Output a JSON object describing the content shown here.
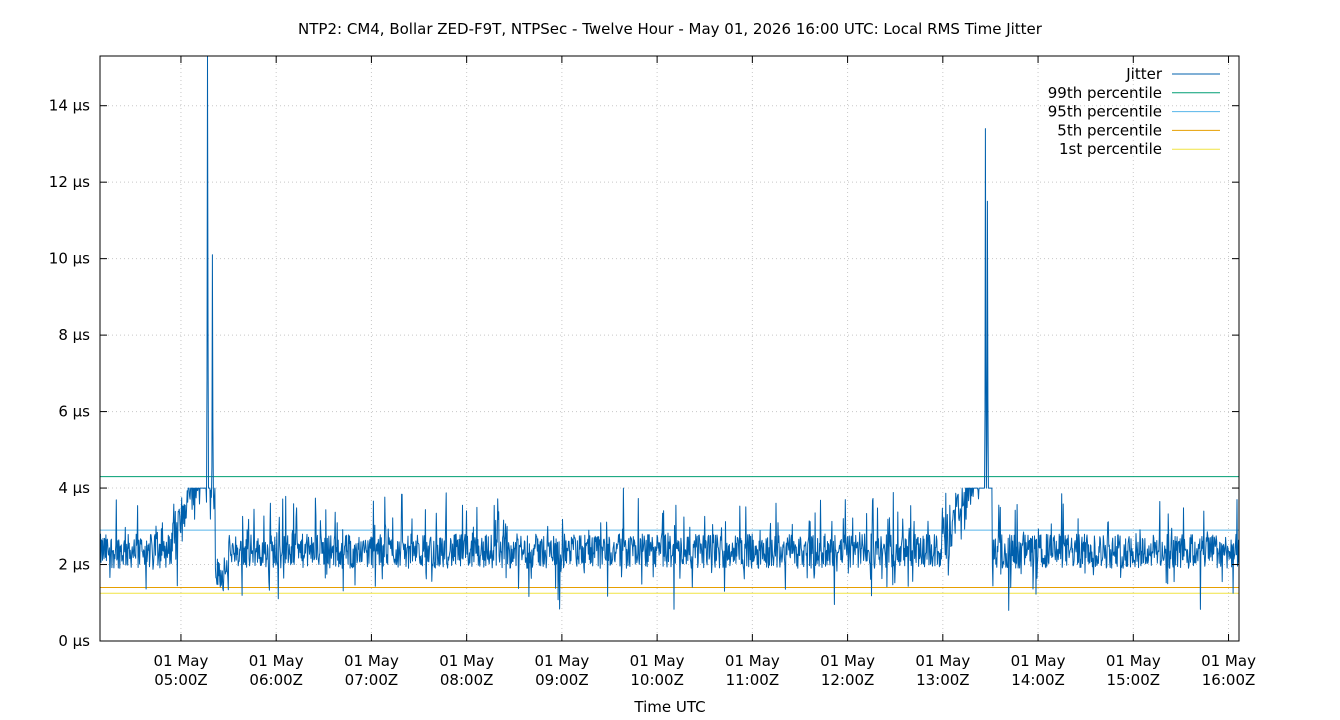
{
  "chart_data": {
    "type": "line",
    "title": "NTP2: CM4, Bollar ZED-F9T, NTPSec - Twelve Hour - May 01, 2026 16:00 UTC: Local RMS Time Jitter",
    "xlabel": "Time UTC",
    "ylabel": "",
    "xlim": [
      "01 May 04:09Z",
      "01 May 16:07Z"
    ],
    "ylim": [
      0,
      15.3
    ],
    "y_unit": "µs",
    "grid": true,
    "legend_position": "top-right",
    "x_ticks": [
      {
        "date": "01 May",
        "time": "05:00Z",
        "hour": 5
      },
      {
        "date": "01 May",
        "time": "06:00Z",
        "hour": 6
      },
      {
        "date": "01 May",
        "time": "07:00Z",
        "hour": 7
      },
      {
        "date": "01 May",
        "time": "08:00Z",
        "hour": 8
      },
      {
        "date": "01 May",
        "time": "09:00Z",
        "hour": 9
      },
      {
        "date": "01 May",
        "time": "10:00Z",
        "hour": 10
      },
      {
        "date": "01 May",
        "time": "11:00Z",
        "hour": 11
      },
      {
        "date": "01 May",
        "time": "12:00Z",
        "hour": 12
      },
      {
        "date": "01 May",
        "time": "13:00Z",
        "hour": 13
      },
      {
        "date": "01 May",
        "time": "14:00Z",
        "hour": 14
      },
      {
        "date": "01 May",
        "time": "15:00Z",
        "hour": 15
      },
      {
        "date": "01 May",
        "time": "16:00Z",
        "hour": 16
      }
    ],
    "y_ticks": [
      {
        "value": 0,
        "label": "0 µs"
      },
      {
        "value": 2,
        "label": "2 µs"
      },
      {
        "value": 4,
        "label": "4 µs"
      },
      {
        "value": 6,
        "label": "6 µs"
      },
      {
        "value": 8,
        "label": "8 µs"
      },
      {
        "value": 10,
        "label": "10 µs"
      },
      {
        "value": 12,
        "label": "12 µs"
      },
      {
        "value": 14,
        "label": "14 µs"
      }
    ],
    "series": [
      {
        "name": "Jitter",
        "color": "#0060ad",
        "baseline_range": [
          1.2,
          3.7
        ],
        "spikes": [
          {
            "hour": 5.28,
            "peak": 15.3
          },
          {
            "hour": 5.33,
            "peak": 10.1
          },
          {
            "hour": 13.45,
            "peak": 13.4
          },
          {
            "hour": 13.47,
            "peak": 11.5
          }
        ]
      },
      {
        "name": "99th percentile",
        "color": "#009e73",
        "value": 4.3
      },
      {
        "name": "95th percentile",
        "color": "#56b4e9",
        "value": 2.9
      },
      {
        "name": "5th percentile",
        "color": "#e69f00",
        "value": 1.4
      },
      {
        "name": "1st percentile",
        "color": "#f0e442",
        "value": 1.25
      }
    ]
  }
}
